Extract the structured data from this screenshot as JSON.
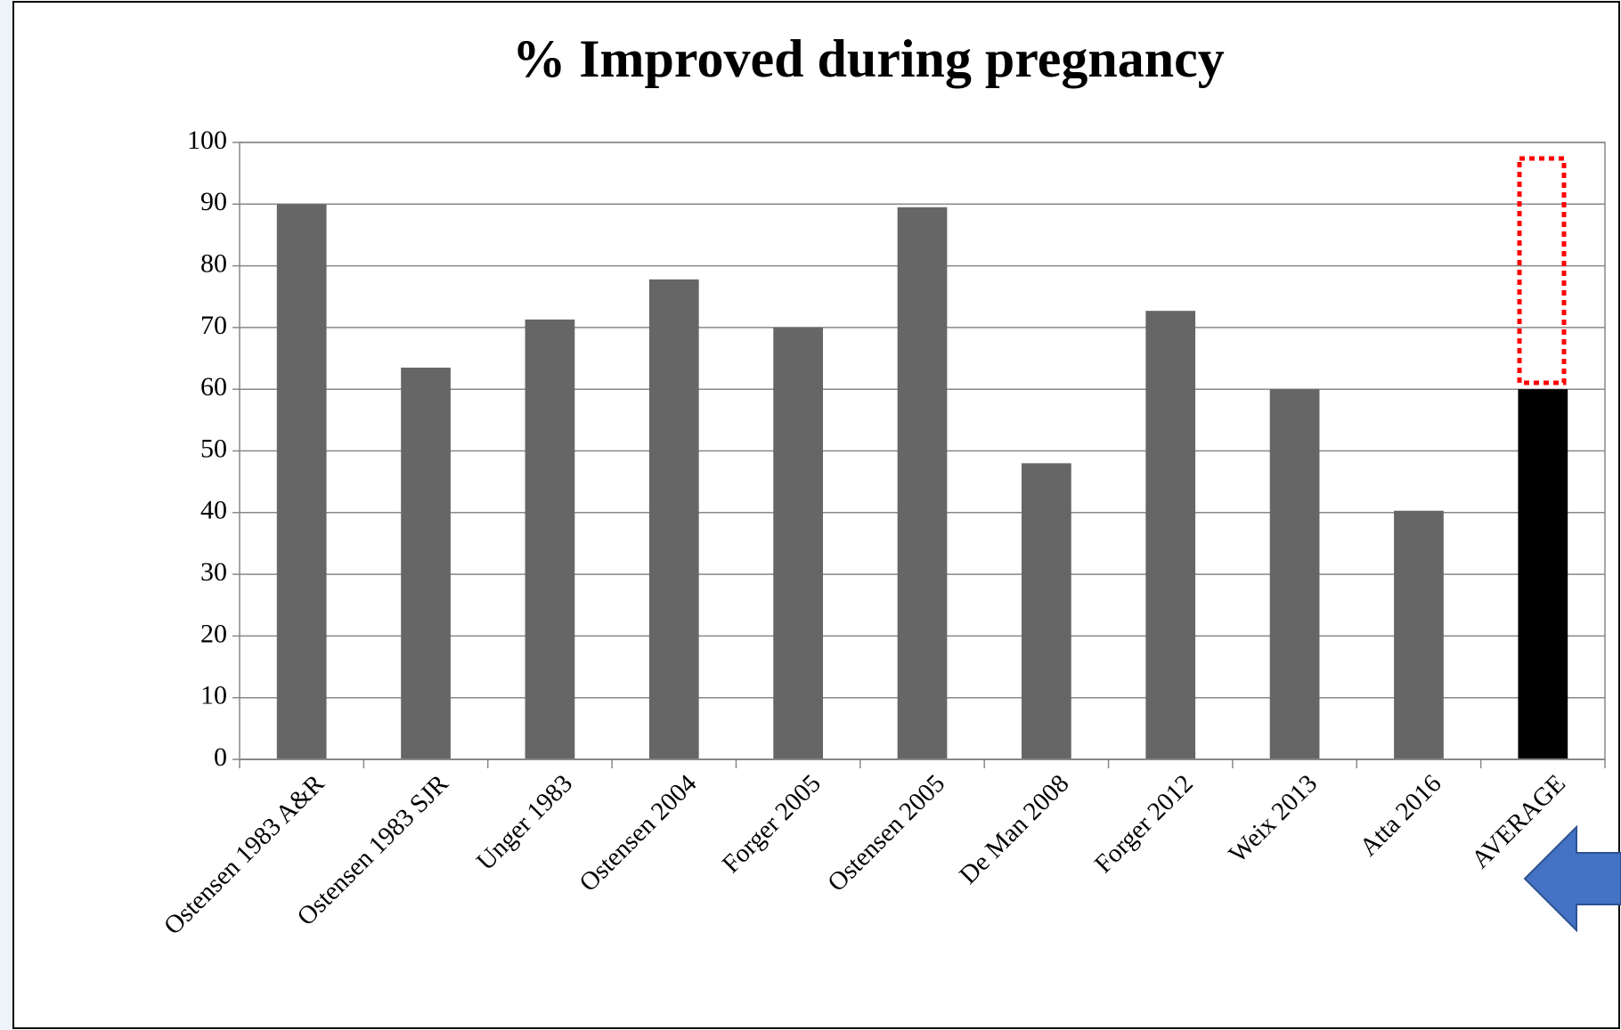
{
  "chart_data": {
    "type": "bar",
    "title": "% Improved during pregnancy",
    "categories": [
      "Ostensen 1983 A&R",
      "Ostensen 1983 SJR",
      "Unger 1983",
      "Ostensen 2004",
      "Forger 2005",
      "Ostensen 2005",
      "De Man 2008",
      "Forger 2012",
      "Weix 2013",
      "Atta 2016",
      "AVERAGE"
    ],
    "values": [
      90,
      63.5,
      71.3,
      77.8,
      70,
      89.5,
      48,
      72.7,
      60,
      40.3,
      60
    ],
    "colors": [
      "#666666",
      "#666666",
      "#666666",
      "#666666",
      "#666666",
      "#666666",
      "#666666",
      "#666666",
      "#666666",
      "#666666",
      "#000000"
    ],
    "ylim": [
      0,
      100
    ],
    "yticks": [
      0,
      10,
      20,
      30,
      40,
      50,
      60,
      70,
      80,
      90,
      100
    ],
    "grid": true
  }
}
